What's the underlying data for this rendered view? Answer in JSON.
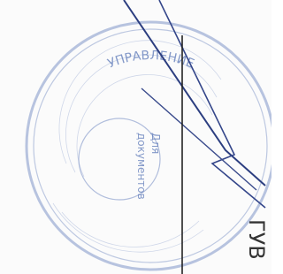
{
  "stamp": {
    "outer_text": "УПРАВЛЕНИЕ",
    "center_text": [
      "Для",
      "документов"
    ]
  },
  "side_text": "ГУВ"
}
